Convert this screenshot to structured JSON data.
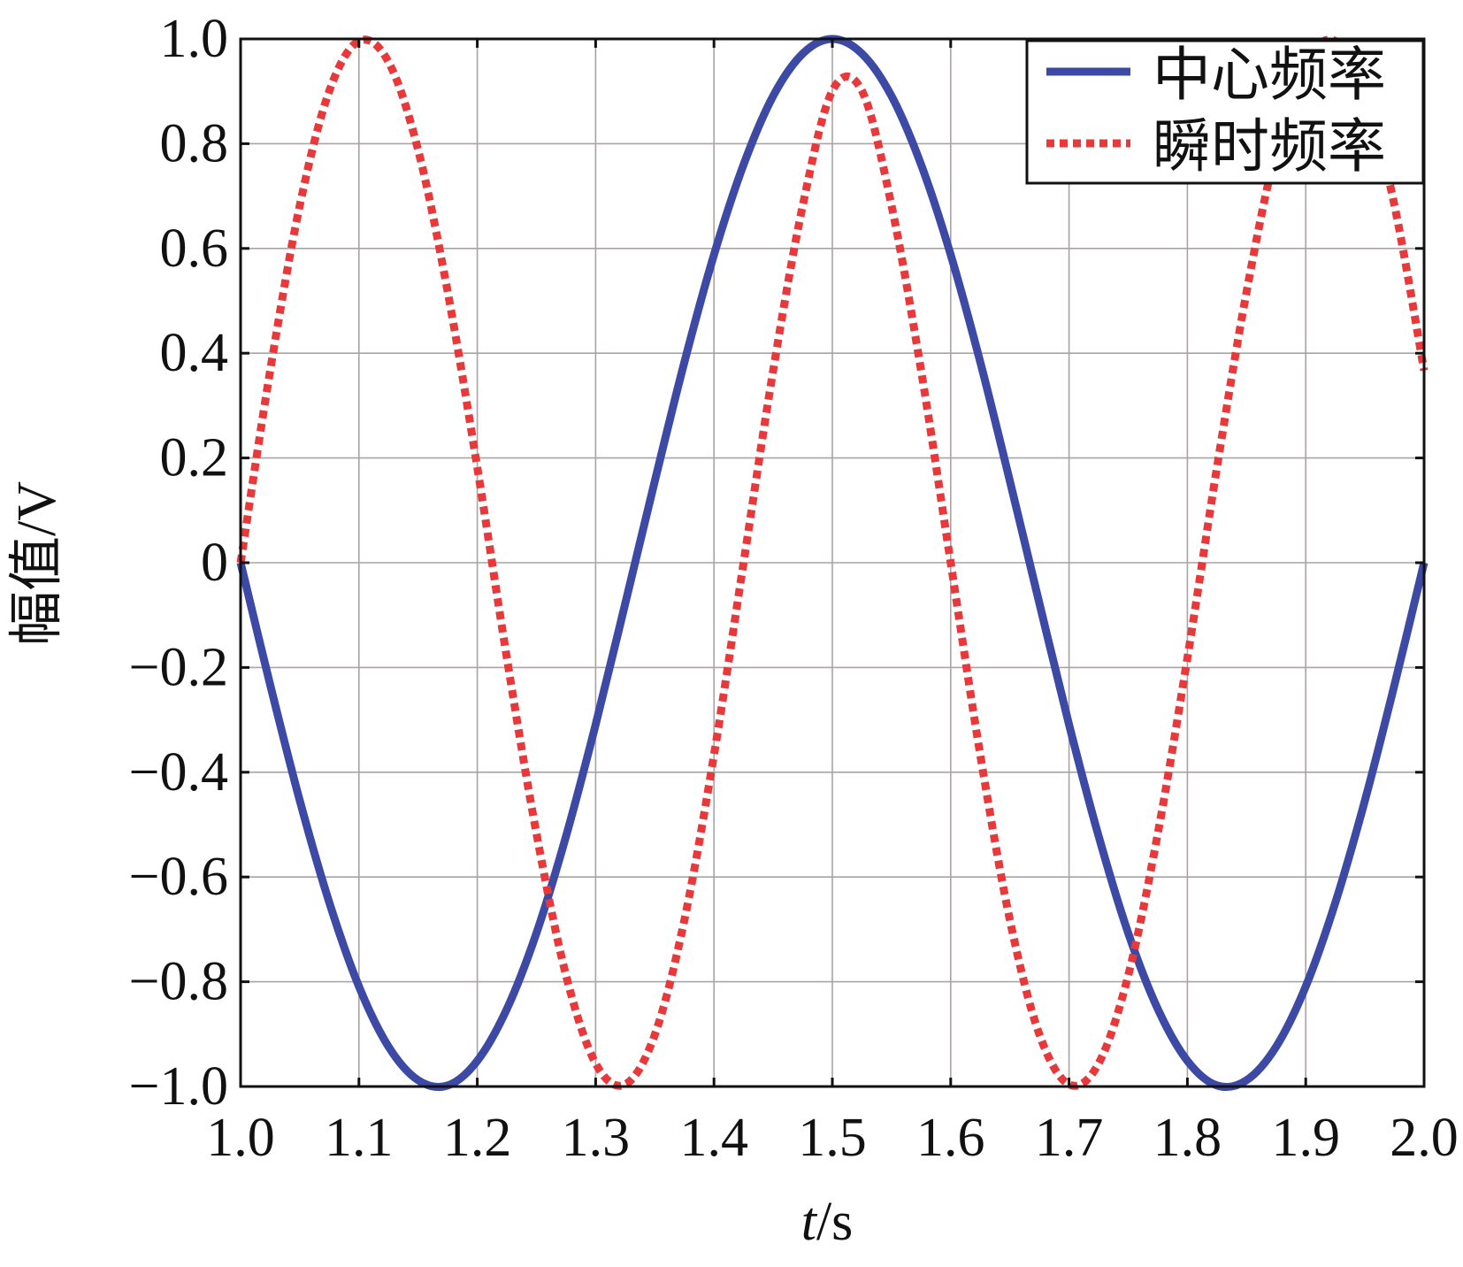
{
  "chart_data": {
    "type": "line",
    "xlabel_italic": "t",
    "xlabel_unit": "/s",
    "ylabel": "幅值/V",
    "xlim": [
      1.0,
      2.0
    ],
    "ylim": [
      -1.0,
      1.0
    ],
    "x_ticks": [
      1.0,
      1.1,
      1.2,
      1.3,
      1.4,
      1.5,
      1.6,
      1.7,
      1.8,
      1.9,
      2.0
    ],
    "x_tick_labels": [
      "1.0",
      "1.1",
      "1.2",
      "1.3",
      "1.4",
      "1.5",
      "1.6",
      "1.7",
      "1.8",
      "1.9",
      "2.0"
    ],
    "y_ticks": [
      1.0,
      0.8,
      0.6,
      0.4,
      0.2,
      0.0,
      -0.2,
      -0.4,
      -0.6,
      -0.8,
      -1.0
    ],
    "y_tick_labels": [
      "1.0",
      "0.8",
      "0.6",
      "0.4",
      "0.2",
      "0",
      "−0.2",
      "−0.4",
      "−0.6",
      "−0.8",
      "−1.0"
    ],
    "grid": true,
    "legend_position": "top-right",
    "series": [
      {
        "name": "中心频率",
        "color": "#3d4aa5",
        "line_style": "solid",
        "x": [
          1.0,
          1.025,
          1.05,
          1.075,
          1.1,
          1.125,
          1.15,
          1.175,
          1.2,
          1.225,
          1.25,
          1.275,
          1.3,
          1.325,
          1.35,
          1.375,
          1.4,
          1.425,
          1.45,
          1.475,
          1.5,
          1.525,
          1.55,
          1.575,
          1.6,
          1.625,
          1.65,
          1.675,
          1.7,
          1.725,
          1.75,
          1.775,
          1.8,
          1.825,
          1.85,
          1.875,
          1.9,
          1.925,
          1.95,
          1.975,
          2.0
        ],
        "y": [
          0.0,
          -0.233,
          -0.454,
          -0.649,
          -0.809,
          -0.924,
          -0.988,
          -0.998,
          -0.951,
          -0.852,
          -0.707,
          -0.522,
          -0.309,
          -0.078,
          0.156,
          0.383,
          0.588,
          0.76,
          0.891,
          0.972,
          1.0,
          0.972,
          0.891,
          0.76,
          0.588,
          0.383,
          0.156,
          -0.078,
          -0.309,
          -0.522,
          -0.707,
          -0.852,
          -0.951,
          -0.998,
          -0.988,
          -0.924,
          -0.809,
          -0.649,
          -0.454,
          -0.233,
          0.0
        ]
      },
      {
        "name": "瞬时频率",
        "color": "#e8383a",
        "line_style": "dotted",
        "x": [
          1.0,
          1.025,
          1.05,
          1.075,
          1.1,
          1.125,
          1.15,
          1.175,
          1.2,
          1.225,
          1.25,
          1.275,
          1.3,
          1.325,
          1.35,
          1.375,
          1.4,
          1.425,
          1.45,
          1.475,
          1.5,
          1.525,
          1.55,
          1.575,
          1.6,
          1.625,
          1.65,
          1.675,
          1.7,
          1.725,
          1.75,
          1.775,
          1.8,
          1.825,
          1.85,
          1.875,
          1.9,
          1.925,
          1.95,
          1.975,
          2.0
        ],
        "y": [
          0.0,
          0.367,
          0.682,
          0.901,
          0.996,
          0.956,
          0.788,
          0.517,
          0.182,
          -0.182,
          -0.517,
          -0.788,
          -0.956,
          -0.996,
          -0.901,
          -0.682,
          -0.367,
          0.0,
          0.367,
          0.682,
          0.901,
          0.901,
          0.682,
          0.367,
          0.0,
          -0.367,
          -0.682,
          -0.901,
          -0.996,
          -0.956,
          -0.788,
          -0.517,
          -0.182,
          0.182,
          0.517,
          0.788,
          0.956,
          0.996,
          0.901,
          0.682,
          0.367
        ]
      }
    ]
  }
}
